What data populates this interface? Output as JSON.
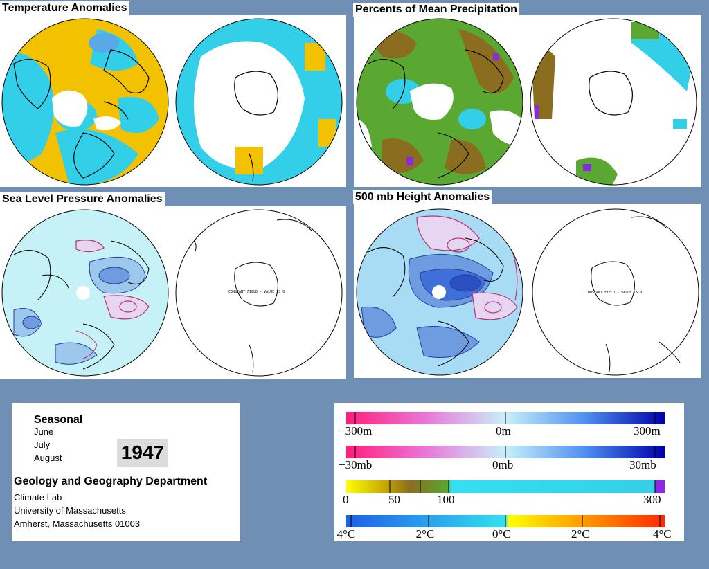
{
  "panels": {
    "temp": {
      "title": "Temperature Anomalies"
    },
    "precip": {
      "title": "Percents of Mean Precipitation"
    },
    "slp": {
      "title": "Sea Level Pressure Anomalies",
      "constant_note": "CONSTANT FIELD - VALUE IS 0"
    },
    "h500": {
      "title": "500 mb Height Anomalies",
      "constant_note": "CONSTANT FIELD - VALUE IS 0"
    }
  },
  "info": {
    "period": "Seasonal",
    "months": [
      "June",
      "July",
      "August"
    ],
    "year": "1947",
    "department": "Geology and Geography Department",
    "lab": "Climate Lab",
    "university": "University of Massachusetts",
    "address": "Amherst, Massachusetts 01003"
  },
  "legend": {
    "height": {
      "labels": [
        "−300m",
        "0m",
        "300m"
      ]
    },
    "pressure": {
      "labels": [
        "−30mb",
        "0mb",
        "30mb"
      ]
    },
    "precip": {
      "labels": [
        "0",
        "50",
        "100",
        "300"
      ]
    },
    "temp": {
      "labels": [
        "−4°C",
        "−2°C",
        "0°C",
        "2°C",
        "4°C"
      ]
    }
  },
  "colors": {
    "background": "#6f8fb5",
    "warm": "#f2c200",
    "cool": "#33cfe8",
    "precip_dry": "#8b6d1f",
    "precip_wet": "#5aa832",
    "slp_fill": "#c6f2f7",
    "slp_low": "#9ec7ec",
    "slp_high": "#e6d6f2",
    "height_neg": "#3f6fd8"
  }
}
